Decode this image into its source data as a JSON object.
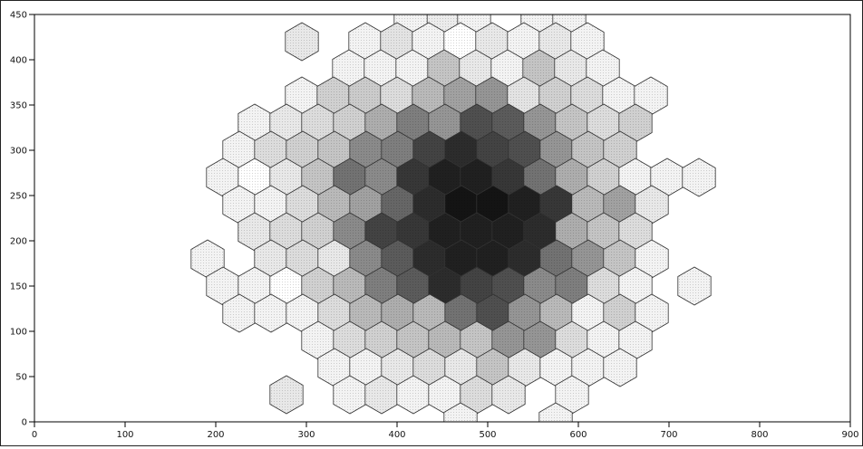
{
  "chart_data": {
    "type": "heatmap",
    "subtype": "hexbin",
    "title": "",
    "xlabel": "",
    "ylabel": "",
    "xlim": [
      0,
      900
    ],
    "ylim": [
      0,
      450
    ],
    "x_ticks": [
      "0",
      "100",
      "200",
      "300",
      "400",
      "500",
      "600",
      "700",
      "800",
      "900"
    ],
    "y_ticks": [
      "0",
      "50",
      "100",
      "150",
      "200",
      "250",
      "300",
      "350",
      "400",
      "450"
    ],
    "hex_radius": 20,
    "grid": false,
    "color_scale": {
      "low": "#ffffff",
      "high": "#141414"
    },
    "bins": [
      {
        "x": 450,
        "y": 450,
        "v": 0.08
      },
      {
        "x": 485,
        "y": 450,
        "v": 0.05
      },
      {
        "x": 415,
        "y": 450,
        "v": 0.05
      },
      {
        "x": 555,
        "y": 450,
        "v": 0.05
      },
      {
        "x": 590,
        "y": 450,
        "v": 0.05
      },
      {
        "x": 295,
        "y": 420,
        "v": 0.1
      },
      {
        "x": 365,
        "y": 420,
        "v": 0.05
      },
      {
        "x": 400,
        "y": 420,
        "v": 0.12
      },
      {
        "x": 435,
        "y": 420,
        "v": 0.05
      },
      {
        "x": 470,
        "y": 420,
        "v": 0.0
      },
      {
        "x": 505,
        "y": 420,
        "v": 0.1
      },
      {
        "x": 540,
        "y": 420,
        "v": 0.05
      },
      {
        "x": 575,
        "y": 420,
        "v": 0.1
      },
      {
        "x": 610,
        "y": 420,
        "v": 0.05
      },
      {
        "x": 347,
        "y": 390,
        "v": 0.05
      },
      {
        "x": 382,
        "y": 390,
        "v": 0.05
      },
      {
        "x": 417,
        "y": 390,
        "v": 0.05
      },
      {
        "x": 452,
        "y": 390,
        "v": 0.25
      },
      {
        "x": 487,
        "y": 390,
        "v": 0.1
      },
      {
        "x": 522,
        "y": 390,
        "v": 0.05
      },
      {
        "x": 557,
        "y": 390,
        "v": 0.25
      },
      {
        "x": 592,
        "y": 390,
        "v": 0.1
      },
      {
        "x": 627,
        "y": 390,
        "v": 0.05
      },
      {
        "x": 295,
        "y": 360,
        "v": 0.05
      },
      {
        "x": 330,
        "y": 360,
        "v": 0.2
      },
      {
        "x": 365,
        "y": 360,
        "v": 0.22
      },
      {
        "x": 400,
        "y": 360,
        "v": 0.15
      },
      {
        "x": 435,
        "y": 360,
        "v": 0.3
      },
      {
        "x": 470,
        "y": 360,
        "v": 0.4
      },
      {
        "x": 505,
        "y": 360,
        "v": 0.45
      },
      {
        "x": 540,
        "y": 360,
        "v": 0.12
      },
      {
        "x": 575,
        "y": 360,
        "v": 0.2
      },
      {
        "x": 610,
        "y": 360,
        "v": 0.15
      },
      {
        "x": 645,
        "y": 360,
        "v": 0.05
      },
      {
        "x": 680,
        "y": 360,
        "v": 0.05
      },
      {
        "x": 243,
        "y": 330,
        "v": 0.05
      },
      {
        "x": 278,
        "y": 330,
        "v": 0.1
      },
      {
        "x": 313,
        "y": 330,
        "v": 0.15
      },
      {
        "x": 348,
        "y": 330,
        "v": 0.2
      },
      {
        "x": 383,
        "y": 330,
        "v": 0.35
      },
      {
        "x": 418,
        "y": 330,
        "v": 0.55
      },
      {
        "x": 453,
        "y": 330,
        "v": 0.45
      },
      {
        "x": 488,
        "y": 330,
        "v": 0.75
      },
      {
        "x": 523,
        "y": 330,
        "v": 0.7
      },
      {
        "x": 558,
        "y": 330,
        "v": 0.45
      },
      {
        "x": 593,
        "y": 330,
        "v": 0.25
      },
      {
        "x": 628,
        "y": 330,
        "v": 0.15
      },
      {
        "x": 663,
        "y": 330,
        "v": 0.2
      },
      {
        "x": 226,
        "y": 300,
        "v": 0.05
      },
      {
        "x": 261,
        "y": 300,
        "v": 0.15
      },
      {
        "x": 296,
        "y": 300,
        "v": 0.2
      },
      {
        "x": 331,
        "y": 300,
        "v": 0.25
      },
      {
        "x": 366,
        "y": 300,
        "v": 0.5
      },
      {
        "x": 401,
        "y": 300,
        "v": 0.55
      },
      {
        "x": 436,
        "y": 300,
        "v": 0.8
      },
      {
        "x": 471,
        "y": 300,
        "v": 0.9
      },
      {
        "x": 506,
        "y": 300,
        "v": 0.8
      },
      {
        "x": 541,
        "y": 300,
        "v": 0.75
      },
      {
        "x": 576,
        "y": 300,
        "v": 0.45
      },
      {
        "x": 611,
        "y": 300,
        "v": 0.25
      },
      {
        "x": 646,
        "y": 300,
        "v": 0.2
      },
      {
        "x": 208,
        "y": 270,
        "v": 0.05
      },
      {
        "x": 243,
        "y": 270,
        "v": 0.0
      },
      {
        "x": 278,
        "y": 270,
        "v": 0.1
      },
      {
        "x": 313,
        "y": 270,
        "v": 0.25
      },
      {
        "x": 348,
        "y": 270,
        "v": 0.6
      },
      {
        "x": 383,
        "y": 270,
        "v": 0.5
      },
      {
        "x": 418,
        "y": 270,
        "v": 0.85
      },
      {
        "x": 453,
        "y": 270,
        "v": 0.95
      },
      {
        "x": 488,
        "y": 270,
        "v": 0.95
      },
      {
        "x": 523,
        "y": 270,
        "v": 0.85
      },
      {
        "x": 558,
        "y": 270,
        "v": 0.6
      },
      {
        "x": 593,
        "y": 270,
        "v": 0.35
      },
      {
        "x": 628,
        "y": 270,
        "v": 0.2
      },
      {
        "x": 663,
        "y": 270,
        "v": 0.05
      },
      {
        "x": 698,
        "y": 270,
        "v": 0.05
      },
      {
        "x": 733,
        "y": 270,
        "v": 0.05
      },
      {
        "x": 226,
        "y": 240,
        "v": 0.05
      },
      {
        "x": 261,
        "y": 240,
        "v": 0.05
      },
      {
        "x": 296,
        "y": 240,
        "v": 0.15
      },
      {
        "x": 331,
        "y": 240,
        "v": 0.3
      },
      {
        "x": 366,
        "y": 240,
        "v": 0.4
      },
      {
        "x": 401,
        "y": 240,
        "v": 0.65
      },
      {
        "x": 436,
        "y": 240,
        "v": 0.9
      },
      {
        "x": 471,
        "y": 240,
        "v": 1.0
      },
      {
        "x": 506,
        "y": 240,
        "v": 1.0
      },
      {
        "x": 541,
        "y": 240,
        "v": 0.95
      },
      {
        "x": 576,
        "y": 240,
        "v": 0.85
      },
      {
        "x": 611,
        "y": 240,
        "v": 0.3
      },
      {
        "x": 646,
        "y": 240,
        "v": 0.4
      },
      {
        "x": 681,
        "y": 240,
        "v": 0.1
      },
      {
        "x": 243,
        "y": 210,
        "v": 0.1
      },
      {
        "x": 278,
        "y": 210,
        "v": 0.15
      },
      {
        "x": 313,
        "y": 210,
        "v": 0.2
      },
      {
        "x": 348,
        "y": 210,
        "v": 0.5
      },
      {
        "x": 383,
        "y": 210,
        "v": 0.8
      },
      {
        "x": 418,
        "y": 210,
        "v": 0.85
      },
      {
        "x": 453,
        "y": 210,
        "v": 0.95
      },
      {
        "x": 488,
        "y": 210,
        "v": 0.95
      },
      {
        "x": 523,
        "y": 210,
        "v": 0.95
      },
      {
        "x": 558,
        "y": 210,
        "v": 0.9
      },
      {
        "x": 593,
        "y": 210,
        "v": 0.35
      },
      {
        "x": 628,
        "y": 210,
        "v": 0.25
      },
      {
        "x": 663,
        "y": 210,
        "v": 0.15
      },
      {
        "x": 191,
        "y": 180,
        "v": 0.05
      },
      {
        "x": 261,
        "y": 180,
        "v": 0.1
      },
      {
        "x": 296,
        "y": 180,
        "v": 0.15
      },
      {
        "x": 331,
        "y": 180,
        "v": 0.1
      },
      {
        "x": 366,
        "y": 180,
        "v": 0.5
      },
      {
        "x": 401,
        "y": 180,
        "v": 0.7
      },
      {
        "x": 436,
        "y": 180,
        "v": 0.9
      },
      {
        "x": 471,
        "y": 180,
        "v": 0.95
      },
      {
        "x": 506,
        "y": 180,
        "v": 0.95
      },
      {
        "x": 541,
        "y": 180,
        "v": 0.9
      },
      {
        "x": 576,
        "y": 180,
        "v": 0.6
      },
      {
        "x": 611,
        "y": 180,
        "v": 0.45
      },
      {
        "x": 646,
        "y": 180,
        "v": 0.25
      },
      {
        "x": 681,
        "y": 180,
        "v": 0.05
      },
      {
        "x": 208,
        "y": 150,
        "v": 0.05
      },
      {
        "x": 243,
        "y": 150,
        "v": 0.05
      },
      {
        "x": 278,
        "y": 150,
        "v": 0.0
      },
      {
        "x": 313,
        "y": 150,
        "v": 0.2
      },
      {
        "x": 348,
        "y": 150,
        "v": 0.3
      },
      {
        "x": 383,
        "y": 150,
        "v": 0.55
      },
      {
        "x": 418,
        "y": 150,
        "v": 0.7
      },
      {
        "x": 453,
        "y": 150,
        "v": 0.9
      },
      {
        "x": 488,
        "y": 150,
        "v": 0.8
      },
      {
        "x": 523,
        "y": 150,
        "v": 0.75
      },
      {
        "x": 558,
        "y": 150,
        "v": 0.5
      },
      {
        "x": 593,
        "y": 150,
        "v": 0.55
      },
      {
        "x": 628,
        "y": 150,
        "v": 0.15
      },
      {
        "x": 663,
        "y": 150,
        "v": 0.05
      },
      {
        "x": 728,
        "y": 150,
        "v": 0.05
      },
      {
        "x": 226,
        "y": 120,
        "v": 0.05
      },
      {
        "x": 261,
        "y": 120,
        "v": 0.05
      },
      {
        "x": 296,
        "y": 120,
        "v": 0.05
      },
      {
        "x": 331,
        "y": 120,
        "v": 0.15
      },
      {
        "x": 366,
        "y": 120,
        "v": 0.3
      },
      {
        "x": 401,
        "y": 120,
        "v": 0.35
      },
      {
        "x": 436,
        "y": 120,
        "v": 0.3
      },
      {
        "x": 471,
        "y": 120,
        "v": 0.6
      },
      {
        "x": 506,
        "y": 120,
        "v": 0.75
      },
      {
        "x": 541,
        "y": 120,
        "v": 0.45
      },
      {
        "x": 576,
        "y": 120,
        "v": 0.3
      },
      {
        "x": 611,
        "y": 120,
        "v": 0.05
      },
      {
        "x": 646,
        "y": 120,
        "v": 0.2
      },
      {
        "x": 681,
        "y": 120,
        "v": 0.05
      },
      {
        "x": 313,
        "y": 90,
        "v": 0.05
      },
      {
        "x": 348,
        "y": 90,
        "v": 0.15
      },
      {
        "x": 383,
        "y": 90,
        "v": 0.2
      },
      {
        "x": 418,
        "y": 90,
        "v": 0.25
      },
      {
        "x": 453,
        "y": 90,
        "v": 0.3
      },
      {
        "x": 488,
        "y": 90,
        "v": 0.25
      },
      {
        "x": 523,
        "y": 90,
        "v": 0.45
      },
      {
        "x": 558,
        "y": 90,
        "v": 0.45
      },
      {
        "x": 593,
        "y": 90,
        "v": 0.15
      },
      {
        "x": 628,
        "y": 90,
        "v": 0.05
      },
      {
        "x": 663,
        "y": 90,
        "v": 0.05
      },
      {
        "x": 331,
        "y": 60,
        "v": 0.05
      },
      {
        "x": 366,
        "y": 60,
        "v": 0.05
      },
      {
        "x": 401,
        "y": 60,
        "v": 0.1
      },
      {
        "x": 436,
        "y": 60,
        "v": 0.15
      },
      {
        "x": 471,
        "y": 60,
        "v": 0.1
      },
      {
        "x": 506,
        "y": 60,
        "v": 0.25
      },
      {
        "x": 541,
        "y": 60,
        "v": 0.1
      },
      {
        "x": 576,
        "y": 60,
        "v": 0.05
      },
      {
        "x": 611,
        "y": 60,
        "v": 0.05
      },
      {
        "x": 646,
        "y": 60,
        "v": 0.05
      },
      {
        "x": 278,
        "y": 30,
        "v": 0.1
      },
      {
        "x": 348,
        "y": 30,
        "v": 0.05
      },
      {
        "x": 383,
        "y": 30,
        "v": 0.1
      },
      {
        "x": 418,
        "y": 30,
        "v": 0.05
      },
      {
        "x": 453,
        "y": 30,
        "v": 0.05
      },
      {
        "x": 488,
        "y": 30,
        "v": 0.15
      },
      {
        "x": 523,
        "y": 30,
        "v": 0.1
      },
      {
        "x": 593,
        "y": 30,
        "v": 0.05
      },
      {
        "x": 470,
        "y": 0,
        "v": 0.05
      },
      {
        "x": 575,
        "y": 0,
        "v": 0.05
      }
    ]
  }
}
